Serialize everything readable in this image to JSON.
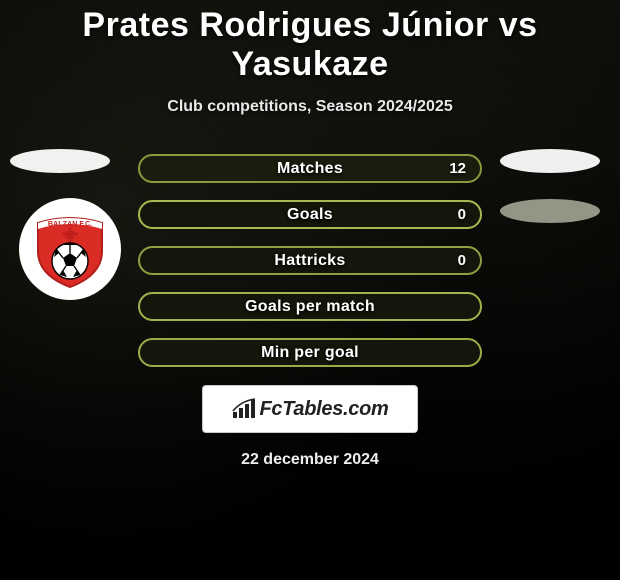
{
  "title": "Prates Rodrigues Júnior vs Yasukaze",
  "subtitle": "Club competitions, Season 2024/2025",
  "date": "22 december 2024",
  "brand": "FcTables.com",
  "colors": {
    "title": "#ffffff",
    "subtitle": "#e8e8e8",
    "date": "#eeeeee",
    "brand_box_bg": "#ffffff",
    "brand_box_border": "#c9c9c9",
    "brand_text": "#222222",
    "ellipse_light": "#ffffff",
    "ellipse_dim": "#acaf9b"
  },
  "logo": {
    "name": "balzan-fc-logo",
    "text_top": "BALZAN F.C.",
    "shield_fill": "#db2b25",
    "shield_stroke": "#b01f1b",
    "cross_fill": "#c31f1f",
    "ball_fill": "#ffffff",
    "ball_line": "#000000"
  },
  "bars": [
    {
      "label": "Matches",
      "value": "12",
      "border": "#899a3d",
      "fill": "#1a1d0e"
    },
    {
      "label": "Goals",
      "value": "0",
      "border": "#a9b84f",
      "fill": "#13160a"
    },
    {
      "label": "Hattricks",
      "value": "0",
      "border": "#8fa143",
      "fill": "#13160a"
    },
    {
      "label": "Goals per match",
      "value": "",
      "border": "#a0b24b",
      "fill": "#13160a"
    },
    {
      "label": "Min per goal",
      "value": "",
      "border": "#9aab48",
      "fill": "#13160a"
    }
  ]
}
